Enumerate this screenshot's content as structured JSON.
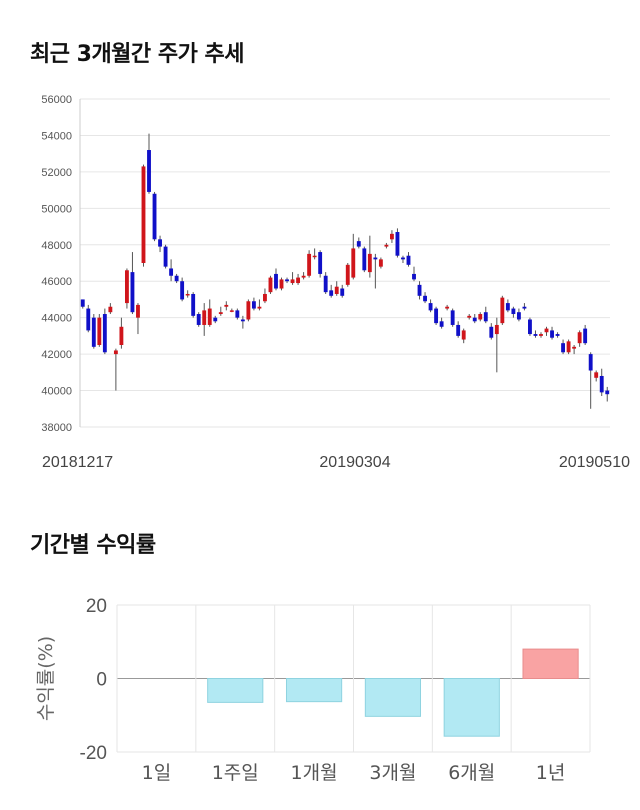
{
  "titles": {
    "price_trend": "최근 3개월간 주가 추세",
    "period_returns": "기간별 수익률"
  },
  "colors": {
    "up": "#d0151b",
    "down": "#1010c8",
    "wick": "#555555",
    "grid": "#e6e6e6",
    "positive_bar": "#f9a3a3",
    "negative_bar": "#b2e9f3"
  },
  "chart_data": [
    {
      "type": "candlestick",
      "title": "최근 3개월간 주가 추세",
      "ylim": [
        38000,
        56000
      ],
      "yticks": [
        38000,
        40000,
        42000,
        44000,
        46000,
        48000,
        50000,
        52000,
        54000,
        56000
      ],
      "x_labels": [
        "20181217",
        "20190304",
        "20190510"
      ],
      "grid": true,
      "candles": [
        [
          45000,
          45000,
          44500,
          44600
        ],
        [
          44500,
          44700,
          43200,
          43300
        ],
        [
          44000,
          44200,
          42300,
          42400
        ],
        [
          42500,
          44200,
          42400,
          44000
        ],
        [
          44200,
          44500,
          42000,
          42100
        ],
        [
          44300,
          44800,
          44200,
          44600
        ],
        [
          42000,
          42300,
          40000,
          42200
        ],
        [
          42500,
          44000,
          42300,
          43500
        ],
        [
          44800,
          46700,
          44500,
          46600
        ],
        [
          46500,
          47600,
          44200,
          44300
        ],
        [
          44000,
          44800,
          43100,
          44700
        ],
        [
          47000,
          52400,
          46800,
          52300
        ],
        [
          53200,
          54100,
          50800,
          50900
        ],
        [
          50800,
          50900,
          48200,
          48300
        ],
        [
          48300,
          48500,
          47600,
          47900
        ],
        [
          47900,
          48000,
          46700,
          46800
        ],
        [
          46700,
          47200,
          46000,
          46300
        ],
        [
          46300,
          46400,
          45900,
          46000
        ],
        [
          46000,
          46200,
          44900,
          45000
        ],
        [
          45300,
          45500,
          45100,
          45300
        ],
        [
          45300,
          45400,
          44000,
          44100
        ],
        [
          44200,
          44300,
          43500,
          43600
        ],
        [
          43600,
          44800,
          43000,
          44400
        ],
        [
          43600,
          45000,
          43500,
          44500
        ],
        [
          44000,
          44100,
          43700,
          43800
        ],
        [
          44200,
          44600,
          44100,
          44300
        ],
        [
          44600,
          44900,
          44400,
          44700
        ],
        [
          44400,
          44500,
          44300,
          44400
        ],
        [
          44400,
          44500,
          43900,
          44000
        ],
        [
          43900,
          44100,
          43400,
          43800
        ],
        [
          43900,
          45000,
          43800,
          44900
        ],
        [
          44900,
          45100,
          44400,
          44500
        ],
        [
          44500,
          45000,
          44400,
          44600
        ],
        [
          44900,
          45600,
          44800,
          45300
        ],
        [
          45400,
          46300,
          45300,
          46200
        ],
        [
          46400,
          46700,
          45500,
          45600
        ],
        [
          45600,
          46200,
          45500,
          46100
        ],
        [
          46100,
          46200,
          45900,
          46000
        ],
        [
          45900,
          46500,
          45800,
          46100
        ],
        [
          45900,
          46400,
          45800,
          46200
        ],
        [
          46200,
          46500,
          46100,
          46300
        ],
        [
          46300,
          47700,
          46200,
          47500
        ],
        [
          47400,
          47800,
          47200,
          47400
        ],
        [
          47600,
          47700,
          46200,
          46400
        ],
        [
          46300,
          46500,
          45300,
          45400
        ],
        [
          45500,
          45800,
          45100,
          45200
        ],
        [
          45300,
          46000,
          45200,
          45700
        ],
        [
          45600,
          45800,
          45100,
          45200
        ],
        [
          45800,
          47000,
          45700,
          46900
        ],
        [
          46200,
          48600,
          46100,
          47800
        ],
        [
          48200,
          48400,
          47800,
          47900
        ],
        [
          47800,
          47900,
          46500,
          46600
        ],
        [
          46500,
          48500,
          46200,
          47500
        ],
        [
          47300,
          47500,
          45600,
          47200
        ],
        [
          46800,
          47300,
          46700,
          47200
        ],
        [
          47900,
          48100,
          47800,
          48000
        ],
        [
          48300,
          48800,
          48100,
          48600
        ],
        [
          48700,
          48900,
          47300,
          47400
        ],
        [
          47300,
          47400,
          47000,
          47200
        ],
        [
          47400,
          47600,
          46800,
          46900
        ],
        [
          46400,
          46800,
          46000,
          46100
        ],
        [
          45800,
          46000,
          45000,
          45200
        ],
        [
          45200,
          45400,
          44800,
          44900
        ],
        [
          44800,
          45000,
          44300,
          44400
        ],
        [
          44500,
          44600,
          43600,
          43700
        ],
        [
          43800,
          44000,
          43400,
          43500
        ],
        [
          44500,
          44700,
          44400,
          44600
        ],
        [
          44400,
          44500,
          43500,
          43600
        ],
        [
          43600,
          43800,
          42900,
          43000
        ],
        [
          42800,
          43400,
          42600,
          43300
        ],
        [
          44000,
          44200,
          43900,
          44100
        ],
        [
          44000,
          44200,
          43700,
          43800
        ],
        [
          43900,
          44300,
          43800,
          44200
        ],
        [
          44300,
          44600,
          43700,
          43800
        ],
        [
          43500,
          43700,
          42800,
          42900
        ],
        [
          43100,
          44000,
          41000,
          43600
        ],
        [
          43700,
          45200,
          43600,
          45100
        ],
        [
          44800,
          45000,
          44300,
          44400
        ],
        [
          44500,
          44600,
          44000,
          44200
        ],
        [
          44300,
          44500,
          43800,
          43900
        ],
        [
          44600,
          44800,
          44400,
          44500
        ],
        [
          43900,
          44000,
          43000,
          43100
        ],
        [
          43100,
          43300,
          42900,
          43000
        ],
        [
          43000,
          43200,
          42900,
          43100
        ],
        [
          43200,
          43500,
          43000,
          43400
        ],
        [
          43300,
          43500,
          42800,
          42900
        ],
        [
          43100,
          43200,
          42900,
          43000
        ],
        [
          42600,
          42800,
          42000,
          42100
        ],
        [
          42100,
          42800,
          42000,
          42700
        ],
        [
          42300,
          42500,
          42000,
          42400
        ],
        [
          42600,
          43300,
          42400,
          43200
        ],
        [
          43400,
          43600,
          42500,
          42600
        ],
        [
          42000,
          42100,
          39000,
          41100
        ],
        [
          40700,
          41100,
          40500,
          41000
        ],
        [
          40800,
          41200,
          39700,
          39900
        ],
        [
          40000,
          40200,
          39400,
          39800
        ]
      ]
    },
    {
      "type": "bar",
      "title": "기간별 수익률",
      "ylabel": "수익률(%)",
      "ylim": [
        -20,
        20
      ],
      "yticks": [
        -20,
        0,
        20
      ],
      "categories": [
        "1일",
        "1주일",
        "1개월",
        "3개월",
        "6개월",
        "1년"
      ],
      "values": [
        0,
        -6.5,
        -6.3,
        -10.3,
        -15.7,
        8.0
      ]
    }
  ]
}
